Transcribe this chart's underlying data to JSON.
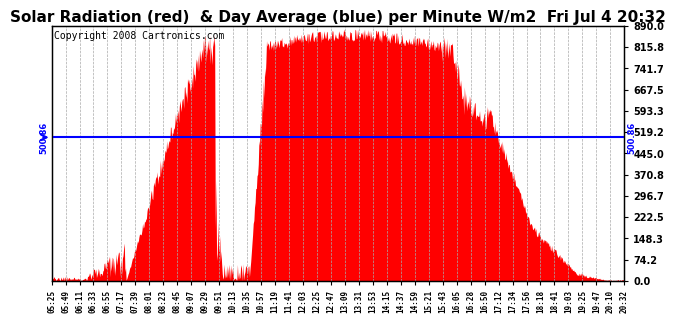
{
  "title": "Solar Radiation (red)  & Day Average (blue) per Minute W/m2  Fri Jul 4 20:32",
  "copyright_text": "Copyright 2008 Cartronics.com",
  "avg_value": 500.86,
  "y_max": 890.0,
  "y_min": 0.0,
  "y_ticks": [
    0.0,
    74.2,
    148.3,
    222.5,
    296.7,
    370.8,
    445.0,
    519.2,
    593.3,
    667.5,
    741.7,
    815.8,
    890.0
  ],
  "bar_color": "#FF0000",
  "avg_line_color": "#0000FF",
  "background_color": "#FFFFFF",
  "grid_color": "#AAAAAA",
  "title_fontsize": 11,
  "copyright_fontsize": 7,
  "x_tick_labels": [
    "05:25",
    "05:49",
    "06:11",
    "06:33",
    "06:55",
    "07:17",
    "07:39",
    "08:01",
    "08:23",
    "08:45",
    "09:07",
    "09:29",
    "09:51",
    "10:13",
    "10:35",
    "10:57",
    "11:19",
    "11:41",
    "12:03",
    "12:25",
    "12:47",
    "13:09",
    "13:31",
    "13:53",
    "14:15",
    "14:37",
    "14:59",
    "15:21",
    "15:43",
    "16:05",
    "16:28",
    "16:50",
    "17:12",
    "17:34",
    "17:56",
    "18:18",
    "18:41",
    "19:03",
    "19:25",
    "19:47",
    "20:10",
    "20:32"
  ],
  "num_points": 907
}
